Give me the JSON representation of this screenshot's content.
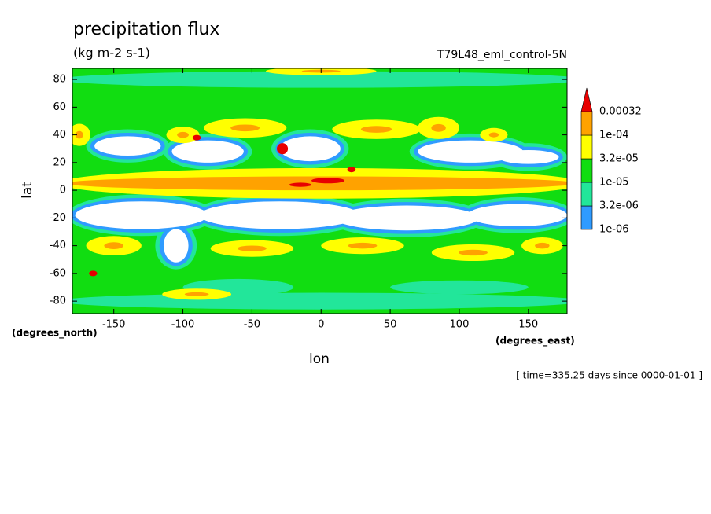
{
  "chart_data": {
    "type": "contour",
    "title": "precipitation flux",
    "subtitle": "(kg m-2 s-1)",
    "annotation": "T79L48_eml_control-5N",
    "x_label": "lon",
    "y_label": "lat",
    "x_unit": "(degrees_east)",
    "y_unit": "(degrees_north)",
    "footer": "[ time=335.25 days since 0000-01-01 ]",
    "xlim": [
      -180,
      178
    ],
    "xticks": [
      -150,
      -100,
      -50,
      0,
      50,
      100,
      150
    ],
    "ylim": [
      -89,
      88
    ],
    "yticks": [
      -80,
      -60,
      -40,
      -20,
      0,
      20,
      40,
      60,
      80
    ],
    "levels": [
      {
        "value": 1e-06,
        "label": "1e-06"
      },
      {
        "value": 3.2e-06,
        "label": "3.2e-06"
      },
      {
        "value": 1e-05,
        "label": "1e-05"
      },
      {
        "value": 3.2e-05,
        "label": "3.2e-05"
      },
      {
        "value": 0.0001,
        "label": "1e-04"
      },
      0.00032
    ],
    "colors": [
      "#2f9bff",
      "#22e69a",
      "#11dd11",
      "#ffff00",
      "#ffa200",
      "#e80000"
    ]
  }
}
